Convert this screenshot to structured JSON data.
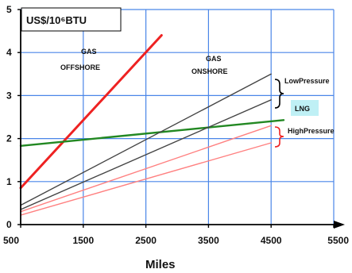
{
  "chart_data": {
    "type": "line",
    "unit_label": "US$/10⁶BTU",
    "xlabel": "Miles",
    "ylabel": "",
    "xlim": [
      500,
      5500
    ],
    "ylim": [
      0,
      5
    ],
    "x_ticks": [
      "500",
      "1500",
      "2500",
      "3500",
      "4500",
      "5500"
    ],
    "y_ticks": [
      "0",
      "1",
      "2",
      "3",
      "4",
      "5"
    ],
    "grid": true,
    "series": [
      {
        "color": "#ee2222",
        "points": [
          [
            500,
            0.85
          ],
          [
            2750,
            4.4
          ]
        ]
      },
      {
        "color": "#228822",
        "points": [
          [
            500,
            1.83
          ],
          [
            4700,
            2.43
          ]
        ]
      },
      {
        "color": "#444444",
        "points": [
          [
            500,
            0.45
          ],
          [
            4500,
            3.5
          ]
        ]
      },
      {
        "color": "#444444",
        "points": [
          [
            500,
            0.35
          ],
          [
            4500,
            2.9
          ]
        ]
      },
      {
        "color": "#ff8080",
        "points": [
          [
            500,
            0.3
          ],
          [
            4500,
            2.3
          ]
        ]
      },
      {
        "color": "#ff8080",
        "points": [
          [
            500,
            0.22
          ],
          [
            4500,
            1.9
          ]
        ]
      }
    ],
    "annotations": {
      "gas_offshore": [
        "GAS",
        "OFFSHORE"
      ],
      "gas_onshore": [
        "GAS",
        "ONSHORE"
      ],
      "low_pressure": "LowPressure",
      "lng": "LNG",
      "high_pressure": "HighPressure"
    },
    "colors": {
      "grid": "#4a86e8",
      "axis": "#000000",
      "lng_box": "#bff0f5",
      "bracket_low": "#000000",
      "bracket_high": "#ee2222"
    }
  }
}
